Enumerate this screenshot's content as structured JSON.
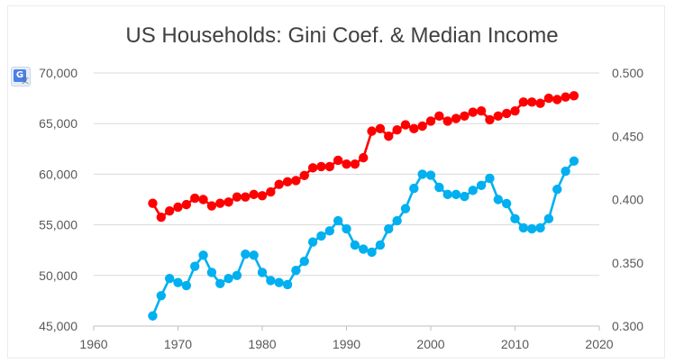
{
  "page": {
    "badge_glyph": "G",
    "badge_sub": "文"
  },
  "chart_data": {
    "type": "line",
    "title": "US Households: Gini Coef. & Median Income",
    "xlabel": "",
    "ylabel": "",
    "y2label": "",
    "xlim": [
      1960,
      2020
    ],
    "ylim": [
      45000,
      70000
    ],
    "y2lim": [
      0.3,
      0.5
    ],
    "x_ticks": [
      "1960",
      "1970",
      "1980",
      "1990",
      "2000",
      "2010",
      "2020"
    ],
    "y_ticks": [
      "45,000",
      "50,000",
      "55,000",
      "60,000",
      "65,000",
      "70,000"
    ],
    "y2_ticks": [
      "0.300",
      "0.350",
      "0.400",
      "0.450",
      "0.500"
    ],
    "grid": "horizontal",
    "legend": "none",
    "colors": {
      "gini": "#ff0000",
      "median_income": "#00b0f0",
      "grid": "#d9d9d9",
      "axis": "#bfbfbf",
      "tick_text": "#595959",
      "title": "#404040"
    },
    "series": [
      {
        "axis": "right",
        "color": "#ff0000",
        "x": [
          1967,
          1968,
          1969,
          1970,
          1971,
          1972,
          1973,
          1974,
          1975,
          1976,
          1977,
          1978,
          1979,
          1980,
          1981,
          1982,
          1983,
          1984,
          1985,
          1986,
          1987,
          1988,
          1989,
          1990,
          1991,
          1992,
          1993,
          1994,
          1995,
          1996,
          1997,
          1998,
          1999,
          2000,
          2001,
          2002,
          2003,
          2004,
          2005,
          2006,
          2007,
          2008,
          2009,
          2010,
          2011,
          2012,
          2013,
          2014,
          2015,
          2016,
          2017
        ],
        "values": [
          0.397,
          0.386,
          0.391,
          0.394,
          0.396,
          0.401,
          0.4,
          0.395,
          0.397,
          0.398,
          0.402,
          0.402,
          0.404,
          0.403,
          0.406,
          0.412,
          0.414,
          0.415,
          0.419,
          0.425,
          0.426,
          0.426,
          0.431,
          0.428,
          0.428,
          0.433,
          0.454,
          0.456,
          0.45,
          0.455,
          0.459,
          0.456,
          0.458,
          0.462,
          0.466,
          0.462,
          0.464,
          0.466,
          0.469,
          0.47,
          0.463,
          0.466,
          0.468,
          0.47,
          0.477,
          0.477,
          0.476,
          0.48,
          0.479,
          0.481,
          0.482
        ]
      },
      {
        "axis": "left",
        "color": "#00b0f0",
        "x": [
          1967,
          1968,
          1969,
          1970,
          1971,
          1972,
          1973,
          1974,
          1975,
          1976,
          1977,
          1978,
          1979,
          1980,
          1981,
          1982,
          1983,
          1984,
          1985,
          1986,
          1987,
          1988,
          1989,
          1990,
          1991,
          1992,
          1993,
          1994,
          1995,
          1996,
          1997,
          1998,
          1999,
          2000,
          2001,
          2002,
          2003,
          2004,
          2005,
          2006,
          2007,
          2008,
          2009,
          2010,
          2011,
          2012,
          2013,
          2014,
          2015,
          2016,
          2017
        ],
        "values": [
          46000,
          48000,
          49700,
          49300,
          49000,
          50900,
          52000,
          50300,
          49200,
          49700,
          50000,
          52100,
          52000,
          50300,
          49500,
          49300,
          49100,
          50500,
          51400,
          53300,
          53900,
          54400,
          55400,
          54600,
          53000,
          52600,
          52300,
          53000,
          54600,
          55400,
          56600,
          58600,
          60000,
          59900,
          58700,
          58000,
          58000,
          57800,
          58400,
          58900,
          59600,
          57500,
          57100,
          55600,
          54700,
          54600,
          54700,
          55600,
          58500,
          60300,
          61300
        ]
      }
    ]
  }
}
